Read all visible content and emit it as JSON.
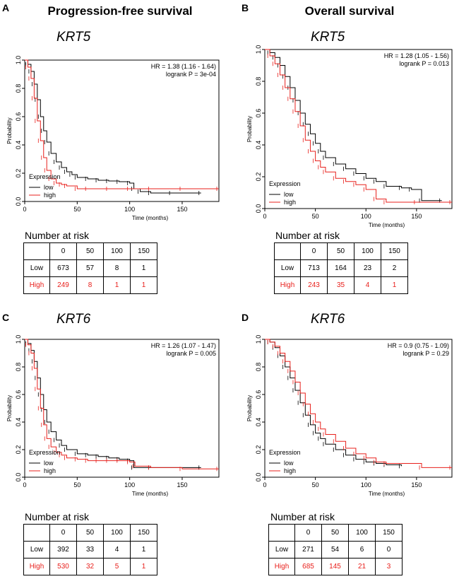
{
  "columns": [
    "Progression-free survival",
    "Overall survival"
  ],
  "colors": {
    "low": "#000000",
    "high": "#e8201c"
  },
  "chart_data": [
    {
      "panel": "A",
      "type": "line",
      "gene": "KRT5",
      "column": 0,
      "row": 0,
      "hr_text": "HR = 1.38 (1.16 - 1.64)",
      "p_text": "logrank P = 3e-04",
      "xlabel": "Time (months)",
      "ylabel": "Probability",
      "xlim": [
        0,
        185
      ],
      "ylim": [
        0,
        1
      ],
      "xticks": [
        "0",
        "50",
        "100",
        "150"
      ],
      "yticks": [
        "0.0",
        "0.2",
        "0.4",
        "0.6",
        "0.8",
        "1.0"
      ],
      "legend_title": "Expression",
      "legend": [
        "low",
        "high"
      ],
      "series": [
        {
          "name": "low",
          "x": [
            0,
            3,
            6,
            9,
            12,
            15,
            18,
            21,
            25,
            30,
            35,
            40,
            45,
            50,
            60,
            70,
            80,
            90,
            100,
            104,
            110,
            120,
            140,
            168
          ],
          "y": [
            1,
            0.97,
            0.92,
            0.83,
            0.72,
            0.6,
            0.5,
            0.42,
            0.34,
            0.28,
            0.24,
            0.21,
            0.19,
            0.17,
            0.16,
            0.15,
            0.145,
            0.14,
            0.13,
            0.09,
            0.07,
            0.06,
            0.06,
            0.06
          ]
        },
        {
          "name": "high",
          "x": [
            0,
            3,
            6,
            9,
            12,
            15,
            18,
            21,
            25,
            30,
            35,
            40,
            50,
            60,
            80,
            100,
            120,
            150,
            185
          ],
          "y": [
            1,
            0.95,
            0.87,
            0.73,
            0.57,
            0.43,
            0.31,
            0.22,
            0.16,
            0.13,
            0.12,
            0.11,
            0.09,
            0.09,
            0.09,
            0.09,
            0.09,
            0.09,
            0.09
          ]
        }
      ]
    },
    {
      "panel": "B",
      "type": "line",
      "gene": "KRT5",
      "column": 1,
      "row": 0,
      "hr_text": "HR = 1.28 (1.05 - 1.56)",
      "p_text": "logrank P = 0.013",
      "xlabel": "Time (months)",
      "ylabel": "Probability",
      "xlim": [
        0,
        185
      ],
      "ylim": [
        0,
        1
      ],
      "xticks": [
        "0",
        "50",
        "100",
        "150"
      ],
      "yticks": [
        "0.0",
        "0.2",
        "0.4",
        "0.6",
        "0.8",
        "1.0"
      ],
      "legend_title": "Expression",
      "legend": [
        "low",
        "high"
      ],
      "series": [
        {
          "name": "low",
          "x": [
            0,
            5,
            10,
            15,
            20,
            25,
            30,
            35,
            40,
            45,
            50,
            55,
            60,
            70,
            80,
            90,
            100,
            110,
            120,
            135,
            145,
            155,
            175
          ],
          "y": [
            1,
            0.98,
            0.95,
            0.9,
            0.83,
            0.76,
            0.68,
            0.6,
            0.53,
            0.47,
            0.41,
            0.36,
            0.32,
            0.28,
            0.25,
            0.22,
            0.19,
            0.17,
            0.14,
            0.13,
            0.12,
            0.05,
            0.05
          ]
        },
        {
          "name": "high",
          "x": [
            0,
            5,
            10,
            15,
            20,
            25,
            30,
            35,
            40,
            45,
            50,
            55,
            60,
            70,
            80,
            90,
            100,
            110,
            120,
            150,
            185
          ],
          "y": [
            1,
            0.96,
            0.91,
            0.84,
            0.76,
            0.69,
            0.61,
            0.52,
            0.43,
            0.36,
            0.3,
            0.26,
            0.23,
            0.19,
            0.17,
            0.15,
            0.12,
            0.06,
            0.04,
            0.04,
            0.04
          ]
        }
      ]
    },
    {
      "panel": "C",
      "type": "line",
      "gene": "KRT6",
      "column": 0,
      "row": 1,
      "hr_text": "HR = 1.26 (1.07 - 1.47)",
      "p_text": "logrank P = 0.005",
      "xlabel": "Time (months)",
      "ylabel": "Probability",
      "xlim": [
        0,
        185
      ],
      "ylim": [
        0,
        1
      ],
      "xticks": [
        "0",
        "50",
        "100",
        "150"
      ],
      "yticks": [
        "0.0",
        "0.2",
        "0.4",
        "0.6",
        "0.8",
        "1.0"
      ],
      "legend_title": "Expression",
      "legend": [
        "low",
        "high"
      ],
      "series": [
        {
          "name": "low",
          "x": [
            0,
            3,
            6,
            9,
            12,
            15,
            18,
            21,
            25,
            30,
            35,
            40,
            50,
            60,
            70,
            80,
            90,
            100,
            104,
            120,
            168
          ],
          "y": [
            1,
            0.97,
            0.92,
            0.84,
            0.72,
            0.6,
            0.49,
            0.4,
            0.33,
            0.27,
            0.23,
            0.2,
            0.17,
            0.16,
            0.15,
            0.14,
            0.13,
            0.12,
            0.07,
            0.07,
            0.07
          ]
        },
        {
          "name": "high",
          "x": [
            0,
            3,
            6,
            9,
            12,
            15,
            18,
            21,
            25,
            30,
            35,
            40,
            50,
            60,
            70,
            80,
            90,
            100,
            105,
            120,
            150,
            185
          ],
          "y": [
            1,
            0.96,
            0.9,
            0.79,
            0.64,
            0.5,
            0.38,
            0.28,
            0.22,
            0.18,
            0.16,
            0.14,
            0.13,
            0.12,
            0.12,
            0.12,
            0.12,
            0.11,
            0.08,
            0.07,
            0.06,
            0.06
          ]
        }
      ]
    },
    {
      "panel": "D",
      "type": "line",
      "gene": "KRT6",
      "column": 1,
      "row": 1,
      "hr_text": "HR = 0.9 (0.75 - 1.09)",
      "p_text": "logrank P = 0.29",
      "xlabel": "Time (months)",
      "ylabel": "Probability",
      "xlim": [
        0,
        185
      ],
      "ylim": [
        0,
        1
      ],
      "xticks": [
        "0",
        "50",
        "100",
        "150"
      ],
      "yticks": [
        "0.0",
        "0.2",
        "0.4",
        "0.6",
        "0.8",
        "1.0"
      ],
      "legend_title": "Expression",
      "legend": [
        "low",
        "high"
      ],
      "series": [
        {
          "name": "low",
          "x": [
            0,
            5,
            10,
            15,
            20,
            25,
            30,
            35,
            40,
            45,
            50,
            55,
            60,
            70,
            80,
            90,
            100,
            110,
            120,
            135
          ],
          "y": [
            1,
            0.98,
            0.94,
            0.88,
            0.8,
            0.72,
            0.63,
            0.54,
            0.45,
            0.38,
            0.32,
            0.28,
            0.24,
            0.2,
            0.16,
            0.13,
            0.11,
            0.1,
            0.09,
            0.08
          ]
        },
        {
          "name": "high",
          "x": [
            0,
            5,
            10,
            15,
            20,
            25,
            30,
            35,
            40,
            45,
            50,
            55,
            60,
            70,
            80,
            90,
            100,
            110,
            120,
            155,
            185
          ],
          "y": [
            1,
            0.98,
            0.95,
            0.9,
            0.84,
            0.77,
            0.69,
            0.61,
            0.53,
            0.46,
            0.4,
            0.35,
            0.31,
            0.26,
            0.21,
            0.17,
            0.14,
            0.11,
            0.1,
            0.07,
            0.07
          ]
        }
      ]
    }
  ],
  "risk_tables": [
    {
      "title": "Number at risk",
      "header": [
        "0",
        "50",
        "100",
        "150"
      ],
      "rows": [
        {
          "label": "Low",
          "values": [
            "673",
            "57",
            "8",
            "1"
          ]
        },
        {
          "label": "High",
          "values": [
            "249",
            "8",
            "1",
            "1"
          ]
        }
      ]
    },
    {
      "title": "Number at risk",
      "header": [
        "0",
        "50",
        "100",
        "150"
      ],
      "rows": [
        {
          "label": "Low",
          "values": [
            "713",
            "164",
            "23",
            "2"
          ]
        },
        {
          "label": "High",
          "values": [
            "243",
            "35",
            "4",
            "1"
          ]
        }
      ]
    },
    {
      "title": "Number at risk",
      "header": [
        "0",
        "50",
        "100",
        "150"
      ],
      "rows": [
        {
          "label": "Low",
          "values": [
            "392",
            "33",
            "4",
            "1"
          ]
        },
        {
          "label": "High",
          "values": [
            "530",
            "32",
            "5",
            "1"
          ]
        }
      ]
    },
    {
      "title": "Number at risk",
      "header": [
        "0",
        "50",
        "100",
        "150"
      ],
      "rows": [
        {
          "label": "Low",
          "values": [
            "271",
            "54",
            "6",
            "0"
          ]
        },
        {
          "label": "High",
          "values": [
            "685",
            "145",
            "21",
            "3"
          ]
        }
      ]
    }
  ]
}
